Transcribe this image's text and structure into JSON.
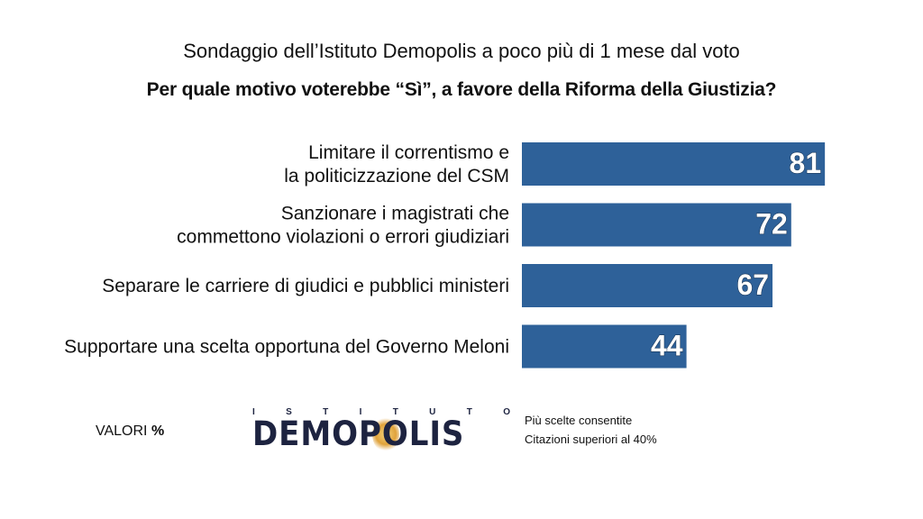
{
  "header": {
    "subtitle": "Sondaggio dell’Istituto Demopolis a poco più di 1 mese dal voto",
    "title": "Per quale motivo voterebbe “Sì”, a favore della Riforma della Giustizia?"
  },
  "chart_data": {
    "type": "bar",
    "orientation": "horizontal",
    "categories": [
      [
        "Limitare il correntismo e",
        "la politicizzazione del CSM"
      ],
      [
        "Sanzionare i magistrati che",
        "commettono violazioni o errori giudiziari"
      ],
      [
        "Separare le carriere di giudici e pubblici ministeri"
      ],
      [
        "Supportare una scelta opportuna del Governo Meloni"
      ]
    ],
    "values": [
      81,
      72,
      67,
      44
    ],
    "xlim": [
      0,
      100
    ],
    "bar_color": "#2e6199",
    "grid": false,
    "legend": "none"
  },
  "footer": {
    "valori_label": "VALORI",
    "valori_unit": "%",
    "logo_top": [
      "I",
      "S",
      "T",
      "I",
      "T",
      "U",
      "T",
      "O"
    ],
    "logo_main": "DEMOPOLIS",
    "note_1": "Più scelte consentite",
    "note_2": "Citazioni superiori al 40%"
  }
}
